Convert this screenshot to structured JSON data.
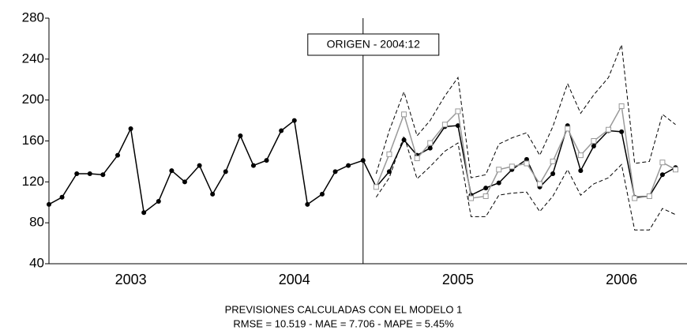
{
  "chart_data": {
    "type": "line",
    "title": "PREVISIONES CALCULADAS CON EL MODELO 1",
    "subtitle": "RMSE = 10.519  -  MAE = 7.706  -  MAPE = 5.45%",
    "x": [
      2003.0,
      2003.08,
      2003.17,
      2003.25,
      2003.33,
      2003.42,
      2003.5,
      2003.58,
      2003.67,
      2003.75,
      2003.83,
      2003.92,
      2004.0,
      2004.08,
      2004.17,
      2004.25,
      2004.33,
      2004.42,
      2004.5,
      2004.58,
      2004.67,
      2004.75,
      2004.83,
      2004.92,
      2005.0,
      2005.08,
      2005.17,
      2005.25,
      2005.33,
      2005.42,
      2005.5,
      2005.58,
      2005.67,
      2005.75,
      2005.83,
      2005.92,
      2006.0,
      2006.08,
      2006.17,
      2006.25,
      2006.33,
      2006.42,
      2006.5,
      2006.58,
      2006.67,
      2006.75,
      2006.83
    ],
    "series": [
      {
        "color": "#000000",
        "marker": "circle",
        "dash": false,
        "values": [
          98,
          105,
          128,
          128,
          127,
          146,
          172,
          90,
          101,
          131,
          120,
          136,
          108,
          130,
          165,
          136,
          141,
          170,
          180,
          98,
          108,
          130,
          136,
          141,
          115,
          130,
          161,
          146,
          153,
          174,
          175,
          107,
          114,
          119,
          132,
          142,
          115,
          128,
          175,
          131,
          155,
          170,
          169,
          105,
          106,
          127,
          134
        ]
      },
      {
        "color": "#999999",
        "marker": "square",
        "dash": false,
        "values": [
          null,
          null,
          null,
          null,
          null,
          null,
          null,
          null,
          null,
          null,
          null,
          null,
          null,
          null,
          null,
          null,
          null,
          null,
          null,
          null,
          null,
          null,
          null,
          null,
          115,
          147,
          186,
          143,
          158,
          176,
          189,
          104,
          106,
          132,
          135,
          138,
          118,
          140,
          172,
          146,
          160,
          171,
          194,
          104,
          106,
          139,
          132
        ]
      },
      {
        "color": "#000000",
        "marker": "none",
        "dash": true,
        "values": [
          null,
          null,
          null,
          null,
          null,
          null,
          null,
          null,
          null,
          null,
          null,
          null,
          null,
          null,
          null,
          null,
          null,
          null,
          null,
          null,
          null,
          null,
          null,
          null,
          128,
          170,
          208,
          165,
          180,
          204,
          222,
          124,
          127,
          157,
          163,
          168,
          146,
          174,
          216,
          187,
          205,
          222,
          254,
          138,
          140,
          186,
          176
        ]
      },
      {
        "color": "#000000",
        "marker": "none",
        "dash": true,
        "values": [
          null,
          null,
          null,
          null,
          null,
          null,
          null,
          null,
          null,
          null,
          null,
          null,
          null,
          null,
          null,
          null,
          null,
          null,
          null,
          null,
          null,
          null,
          null,
          null,
          105,
          124,
          165,
          123,
          135,
          150,
          158,
          86,
          86,
          107,
          109,
          110,
          91,
          106,
          132,
          107,
          118,
          124,
          137,
          73,
          73,
          94,
          88
        ]
      }
    ],
    "xlim": [
      2003,
      2006.9
    ],
    "xticks": [
      {
        "value": 2003.5,
        "label": "2003"
      },
      {
        "value": 2004.5,
        "label": "2004"
      },
      {
        "value": 2005.5,
        "label": "2005"
      },
      {
        "value": 2006.5,
        "label": "2006"
      }
    ],
    "ylim": [
      40,
      280
    ],
    "yticks": [
      40,
      80,
      120,
      160,
      200,
      240,
      280
    ],
    "grid": false,
    "annotations": [
      {
        "text": "ORIGEN - 2004:12",
        "x": 2004.92
      }
    ]
  }
}
